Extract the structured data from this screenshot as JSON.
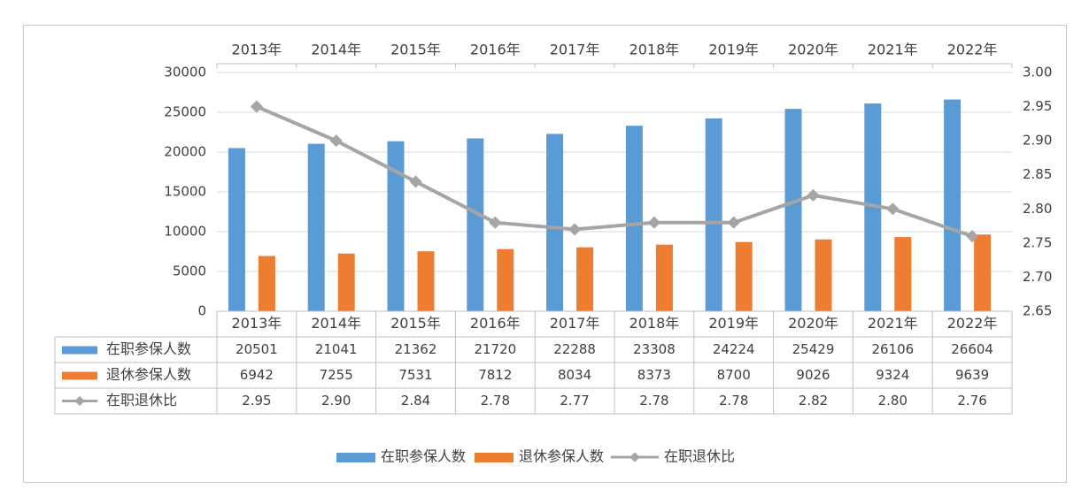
{
  "chart_data": {
    "type": "bar",
    "categories": [
      "2013年",
      "2014年",
      "2015年",
      "2016年",
      "2017年",
      "2018年",
      "2019年",
      "2020年",
      "2021年",
      "2022年"
    ],
    "series": [
      {
        "name": "在职参保人数",
        "type": "bar",
        "axis": "left",
        "color": "#5b9bd5",
        "values": [
          20501,
          21041,
          21362,
          21720,
          22288,
          23308,
          24224,
          25429,
          26106,
          26604
        ],
        "labels": [
          "20501",
          "21041",
          "21362",
          "21720",
          "22288",
          "23308",
          "24224",
          "25429",
          "26106",
          "26604"
        ]
      },
      {
        "name": "退休参保人数",
        "type": "bar",
        "axis": "left",
        "color": "#ed7d31",
        "values": [
          6942,
          7255,
          7531,
          7812,
          8034,
          8373,
          8700,
          9026,
          9324,
          9639
        ],
        "labels": [
          "6942",
          "7255",
          "7531",
          "7812",
          "8034",
          "8373",
          "8700",
          "9026",
          "9324",
          "9639"
        ]
      },
      {
        "name": "在职退休比",
        "type": "line",
        "axis": "right",
        "color": "#a5a5a5",
        "values": [
          2.95,
          2.9,
          2.84,
          2.78,
          2.77,
          2.78,
          2.78,
          2.82,
          2.8,
          2.76
        ],
        "labels": [
          "2.95",
          "2.90",
          "2.84",
          "2.78",
          "2.77",
          "2.78",
          "2.78",
          "2.82",
          "2.80",
          "2.76"
        ]
      }
    ],
    "y_left": {
      "min": 0,
      "max": 30000,
      "ticks": [
        "0",
        "5000",
        "10000",
        "15000",
        "20000",
        "25000",
        "30000"
      ]
    },
    "y_right": {
      "min": 2.65,
      "max": 3.0,
      "ticks": [
        "2.65",
        "2.70",
        "2.75",
        "2.80",
        "2.85",
        "2.90",
        "2.95",
        "3.00"
      ]
    },
    "grid": true,
    "legend": "bottom",
    "data_table": true
  }
}
